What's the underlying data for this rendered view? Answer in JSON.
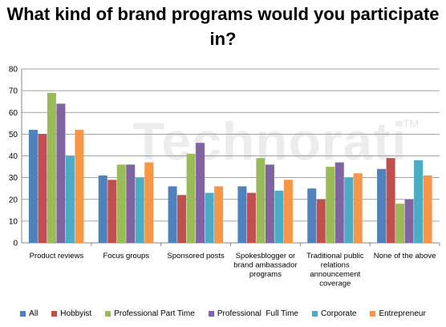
{
  "chart_data": {
    "type": "bar",
    "title": "What kind of brand programs would you participate in?",
    "watermark": "Technorati",
    "watermark_mark": "TM",
    "categories": [
      [
        "Product reviews"
      ],
      [
        "Focus groups"
      ],
      [
        "Sponsored posts"
      ],
      [
        "Spokesblogger or",
        "brand ambassador",
        "programs"
      ],
      [
        "Traditional public",
        "relations",
        "announcement",
        "coverage"
      ],
      [
        "None of the above"
      ]
    ],
    "series": [
      {
        "name": "All",
        "color": "#4f81bd",
        "values": [
          52,
          31,
          26,
          26,
          25,
          34
        ]
      },
      {
        "name": "Hobbyist",
        "color": "#c0504d",
        "values": [
          50,
          29,
          22,
          23,
          20,
          39
        ]
      },
      {
        "name": "Professional Part Time",
        "color": "#9bbb59",
        "values": [
          69,
          36,
          41,
          39,
          35,
          18
        ]
      },
      {
        "name": "Professional  Full Time",
        "color": "#8064a2",
        "values": [
          64,
          36,
          46,
          36,
          37,
          20
        ]
      },
      {
        "name": "Corporate",
        "color": "#4bacc6",
        "values": [
          40,
          30,
          23,
          24,
          30,
          38
        ]
      },
      {
        "name": "Entrepreneur",
        "color": "#f79646",
        "values": [
          52,
          37,
          26,
          29,
          32,
          31
        ]
      }
    ],
    "ylim": [
      0,
      80
    ],
    "yticks": [
      0,
      10,
      20,
      30,
      40,
      50,
      60,
      70,
      80
    ],
    "grid": true,
    "legend_position": "bottom"
  }
}
